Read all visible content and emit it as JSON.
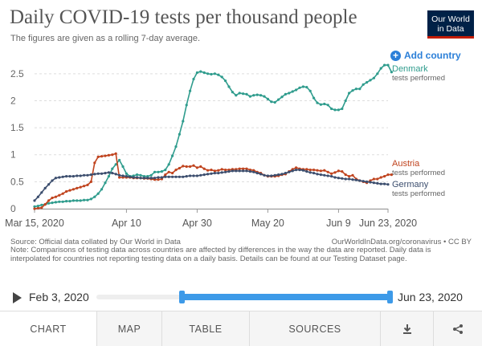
{
  "header": {
    "title": "Daily COVID-19 tests per thousand people",
    "subtitle": "The figures are given as a rolling 7-day average.",
    "logo_line1": "Our World",
    "logo_line2": "in Data"
  },
  "controls": {
    "add_country_label": "Add country"
  },
  "footer": {
    "source": "Source: Official data collated by Our World in Data",
    "site": "OurWorldInData.org/coronavirus • CC BY",
    "note": "Note: Comparisons of testing data across countries are affected by differences in the way the data are reported. Daily data is interpolated for countries not reporting testing data on a daily basis. Details can be found at our Testing Dataset page."
  },
  "timeline": {
    "start_label": "Feb 3, 2020",
    "end_label": "Jun 23, 2020",
    "range_start_fraction": 0.29,
    "range_end_fraction": 1.0
  },
  "tabs": [
    {
      "label": "CHART",
      "active": true
    },
    {
      "label": "MAP",
      "active": false
    },
    {
      "label": "TABLE",
      "active": false
    },
    {
      "label": "SOURCES",
      "active": false
    },
    {
      "label": "download-icon",
      "icon": true
    },
    {
      "label": "share-icon",
      "icon": true
    }
  ],
  "colors": {
    "denmark": "#2f9c8d",
    "austria": "#c0441f",
    "germany": "#3c4e6e",
    "accent": "#2b7fd8"
  },
  "chart_data": {
    "type": "line",
    "title": "Daily COVID-19 tests per thousand people",
    "subtitle": "The figures are given as a rolling 7-day average.",
    "x_start": "Mar 15, 2020",
    "x_end": "Jun 23, 2020",
    "x_tick_labels": [
      "Mar 15, 2020",
      "Apr 10",
      "Apr 30",
      "May 20",
      "Jun 9",
      "Jun 23, 2020"
    ],
    "x_tick_days": [
      0,
      26,
      46,
      66,
      86,
      100
    ],
    "y_ticks": [
      0,
      0.5,
      1,
      1.5,
      2,
      2.5
    ],
    "y_tick_labels": [
      "0",
      "0.5",
      "1",
      "1.5",
      "2",
      "2.5"
    ],
    "ylim": [
      0,
      2.75
    ],
    "grid": "horizontal dashed",
    "legend": "right",
    "series": [
      {
        "name": "Denmark",
        "sub": "tests performed",
        "color": "#2f9c8d",
        "values": [
          0.04,
          0.05,
          0.07,
          0.08,
          0.1,
          0.11,
          0.12,
          0.13,
          0.13,
          0.14,
          0.14,
          0.15,
          0.15,
          0.15,
          0.16,
          0.16,
          0.18,
          0.22,
          0.28,
          0.36,
          0.48,
          0.6,
          0.74,
          0.82,
          0.9,
          0.78,
          0.65,
          0.6,
          0.61,
          0.63,
          0.62,
          0.6,
          0.6,
          0.62,
          0.68,
          0.68,
          0.69,
          0.72,
          0.82,
          0.98,
          1.15,
          1.38,
          1.62,
          1.92,
          2.18,
          2.4,
          2.52,
          2.54,
          2.52,
          2.5,
          2.49,
          2.5,
          2.48,
          2.44,
          2.37,
          2.26,
          2.16,
          2.1,
          2.14,
          2.13,
          2.12,
          2.08,
          2.1,
          2.11,
          2.1,
          2.08,
          2.03,
          1.98,
          1.97,
          2.02,
          2.07,
          2.12,
          2.14,
          2.17,
          2.2,
          2.24,
          2.26,
          2.25,
          2.18,
          2.05,
          1.96,
          1.93,
          1.94,
          1.92,
          1.85,
          1.83,
          1.83,
          1.85,
          2.0,
          2.14,
          2.19,
          2.22,
          2.22,
          2.3,
          2.34,
          2.38,
          2.42,
          2.5,
          2.6,
          2.66,
          2.66,
          2.53
        ]
      },
      {
        "name": "Austria",
        "sub": "tests performed",
        "color": "#c0441f",
        "values": [
          0.0,
          0.01,
          0.02,
          0.08,
          0.15,
          0.2,
          0.22,
          0.25,
          0.28,
          0.32,
          0.34,
          0.36,
          0.38,
          0.4,
          0.42,
          0.44,
          0.5,
          0.85,
          0.96,
          0.97,
          0.98,
          0.99,
          1.0,
          1.02,
          0.58,
          0.58,
          0.58,
          0.58,
          0.57,
          0.57,
          0.57,
          0.56,
          0.56,
          0.55,
          0.54,
          0.54,
          0.55,
          0.63,
          0.68,
          0.66,
          0.72,
          0.75,
          0.79,
          0.78,
          0.78,
          0.8,
          0.76,
          0.78,
          0.74,
          0.71,
          0.72,
          0.7,
          0.71,
          0.73,
          0.72,
          0.72,
          0.73,
          0.73,
          0.74,
          0.74,
          0.74,
          0.72,
          0.71,
          0.68,
          0.66,
          0.62,
          0.6,
          0.6,
          0.6,
          0.61,
          0.63,
          0.64,
          0.69,
          0.73,
          0.76,
          0.74,
          0.73,
          0.73,
          0.72,
          0.72,
          0.71,
          0.7,
          0.71,
          0.68,
          0.65,
          0.67,
          0.7,
          0.69,
          0.63,
          0.6,
          0.62,
          0.55,
          0.52,
          0.5,
          0.48,
          0.52,
          0.55,
          0.55,
          0.58,
          0.6,
          0.63,
          0.63
        ]
      },
      {
        "name": "Germany",
        "sub": "tests performed",
        "color": "#3c4e6e",
        "values": [
          0.15,
          0.22,
          0.3,
          0.38,
          0.45,
          0.52,
          0.57,
          0.58,
          0.59,
          0.6,
          0.6,
          0.6,
          0.61,
          0.61,
          0.62,
          0.62,
          0.63,
          0.64,
          0.65,
          0.65,
          0.66,
          0.67,
          0.66,
          0.64,
          0.62,
          0.61,
          0.6,
          0.59,
          0.58,
          0.58,
          0.57,
          0.57,
          0.57,
          0.57,
          0.57,
          0.58,
          0.58,
          0.59,
          0.59,
          0.59,
          0.59,
          0.59,
          0.59,
          0.6,
          0.61,
          0.61,
          0.61,
          0.62,
          0.63,
          0.64,
          0.65,
          0.66,
          0.66,
          0.67,
          0.68,
          0.69,
          0.7,
          0.7,
          0.7,
          0.7,
          0.7,
          0.69,
          0.68,
          0.66,
          0.64,
          0.62,
          0.61,
          0.61,
          0.62,
          0.63,
          0.64,
          0.66,
          0.68,
          0.7,
          0.72,
          0.72,
          0.71,
          0.69,
          0.67,
          0.66,
          0.64,
          0.63,
          0.62,
          0.61,
          0.6,
          0.58,
          0.57,
          0.56,
          0.55,
          0.55,
          0.54,
          0.53,
          0.52,
          0.51,
          0.5,
          0.49,
          0.48,
          0.47,
          0.46,
          0.46,
          0.45
        ]
      }
    ]
  }
}
